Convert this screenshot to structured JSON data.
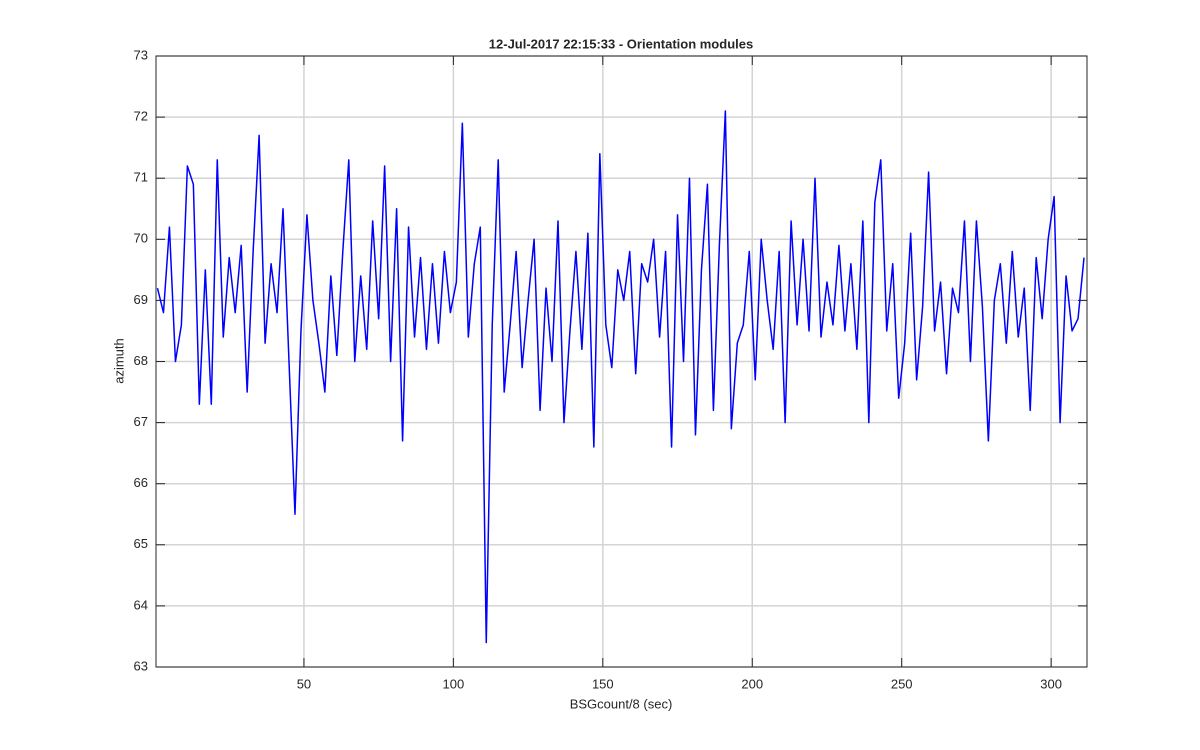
{
  "chart_data": {
    "type": "line",
    "title": "12-Jul-2017 22:15:33 - Orientation modules",
    "x_label": "BSGcount/8 (sec)",
    "y_label": "azimuth",
    "x": [
      1,
      3,
      5,
      7,
      9,
      11,
      13,
      15,
      17,
      19,
      21,
      23,
      25,
      27,
      29,
      31,
      33,
      35,
      37,
      39,
      41,
      43,
      45,
      47,
      49,
      51,
      53,
      55,
      57,
      59,
      61,
      63,
      65,
      67,
      69,
      71,
      73,
      75,
      77,
      79,
      81,
      83,
      85,
      87,
      89,
      91,
      93,
      95,
      97,
      99,
      101,
      103,
      105,
      107,
      109,
      111,
      113,
      115,
      117,
      119,
      121,
      123,
      125,
      127,
      129,
      131,
      133,
      135,
      137,
      139,
      141,
      143,
      145,
      147,
      149,
      151,
      153,
      155,
      157,
      159,
      161,
      163,
      165,
      167,
      169,
      171,
      173,
      175,
      177,
      179,
      181,
      183,
      185,
      187,
      189,
      191,
      193,
      195,
      197,
      199,
      201,
      203,
      205,
      207,
      209,
      211,
      213,
      215,
      217,
      219,
      221,
      223,
      225,
      227,
      229,
      231,
      233,
      235,
      237,
      239,
      241,
      243,
      245,
      247,
      249,
      251,
      253,
      255,
      257,
      259,
      261,
      263,
      265,
      267,
      269,
      271,
      273,
      275,
      277,
      279,
      281,
      283,
      285,
      287,
      289,
      291,
      293,
      295,
      297,
      299,
      301,
      303,
      305,
      307,
      309,
      311
    ],
    "values": [
      69.2,
      68.8,
      70.2,
      68.0,
      68.6,
      71.2,
      70.9,
      67.3,
      69.5,
      67.3,
      71.3,
      68.4,
      69.7,
      68.8,
      69.9,
      67.5,
      69.8,
      71.7,
      68.3,
      69.6,
      68.8,
      70.5,
      68.0,
      65.5,
      68.5,
      70.4,
      69.0,
      68.3,
      67.5,
      69.4,
      68.1,
      69.8,
      71.3,
      68.0,
      69.4,
      68.2,
      70.3,
      68.7,
      71.2,
      68.0,
      70.5,
      66.7,
      70.2,
      68.4,
      69.7,
      68.2,
      69.6,
      68.3,
      69.8,
      68.8,
      69.3,
      71.9,
      68.4,
      69.6,
      70.2,
      63.4,
      68.6,
      71.3,
      67.5,
      68.6,
      69.8,
      67.9,
      69.0,
      70.0,
      67.2,
      69.2,
      68.0,
      70.3,
      67.0,
      68.5,
      69.8,
      68.2,
      70.1,
      66.6,
      71.4,
      68.6,
      67.9,
      69.5,
      69.0,
      69.8,
      67.8,
      69.6,
      69.3,
      70.0,
      68.4,
      69.8,
      66.6,
      70.4,
      68.0,
      71.0,
      66.8,
      69.5,
      70.9,
      67.2,
      69.9,
      72.1,
      66.9,
      68.3,
      68.6,
      69.8,
      67.7,
      70.0,
      69.0,
      68.2,
      69.8,
      67.0,
      70.3,
      68.6,
      70.0,
      68.5,
      71.0,
      68.4,
      69.3,
      68.6,
      69.9,
      68.5,
      69.6,
      68.2,
      70.3,
      67.0,
      70.6,
      71.3,
      68.5,
      69.6,
      67.4,
      68.3,
      70.1,
      67.7,
      68.9,
      71.1,
      68.5,
      69.3,
      67.8,
      69.2,
      68.8,
      70.3,
      68.0,
      70.3,
      68.9,
      66.7,
      69.0,
      69.6,
      68.3,
      69.8,
      68.4,
      69.2,
      67.2,
      69.7,
      68.7,
      70.0,
      70.7,
      67.0,
      69.4,
      68.5,
      68.7,
      69.7
    ],
    "color": "#0000ff",
    "xlim": [
      0.5,
      312
    ],
    "xticks": [
      50,
      100,
      150,
      200,
      250,
      300
    ],
    "ylim": [
      63,
      73
    ],
    "yticks": [
      63,
      64,
      65,
      66,
      67,
      68,
      69,
      70,
      71,
      72,
      73
    ],
    "grid": true
  }
}
